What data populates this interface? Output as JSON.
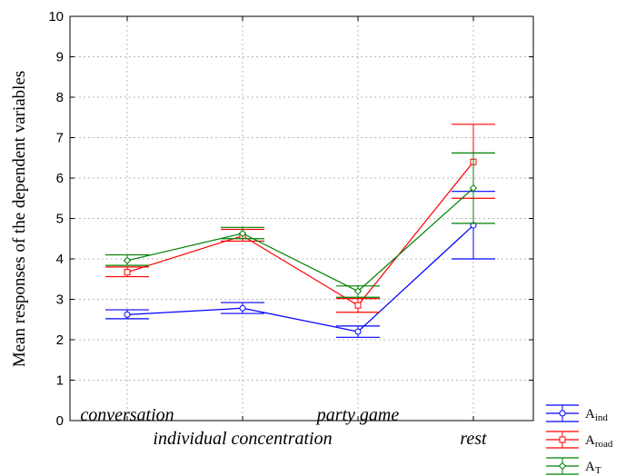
{
  "chart_data": {
    "type": "line",
    "ylabel": "Mean responses of the dependent variables",
    "xlabel": "",
    "ylim": [
      0,
      10
    ],
    "yticks": [
      "0",
      "1",
      "2",
      "3",
      "4",
      "5",
      "6",
      "7",
      "8",
      "9",
      "10"
    ],
    "categories": [
      "conversation",
      "individual concentration",
      "party game",
      "rest"
    ],
    "grid": true,
    "legend_position": "bottom-right",
    "series": [
      {
        "name": "A",
        "subscript": "ind",
        "color": "#0000ff",
        "marker": "circle",
        "values": [
          2.62,
          2.78,
          2.2,
          4.83
        ],
        "err_low": [
          2.52,
          2.65,
          2.06,
          4.0
        ],
        "err_high": [
          2.74,
          2.92,
          2.34,
          5.67
        ]
      },
      {
        "name": "A",
        "subscript": "road",
        "color": "#ff0000",
        "marker": "square",
        "values": [
          3.67,
          4.57,
          2.85,
          6.4
        ],
        "err_low": [
          3.56,
          4.44,
          2.68,
          5.5
        ],
        "err_high": [
          3.8,
          4.73,
          3.02,
          7.33
        ]
      },
      {
        "name": "A",
        "subscript": "T",
        "color": "#008000",
        "marker": "diamond",
        "values": [
          3.96,
          4.63,
          3.2,
          5.75
        ],
        "err_low": [
          3.84,
          4.5,
          3.05,
          4.88
        ],
        "err_high": [
          4.1,
          4.78,
          3.33,
          6.62
        ]
      }
    ]
  }
}
